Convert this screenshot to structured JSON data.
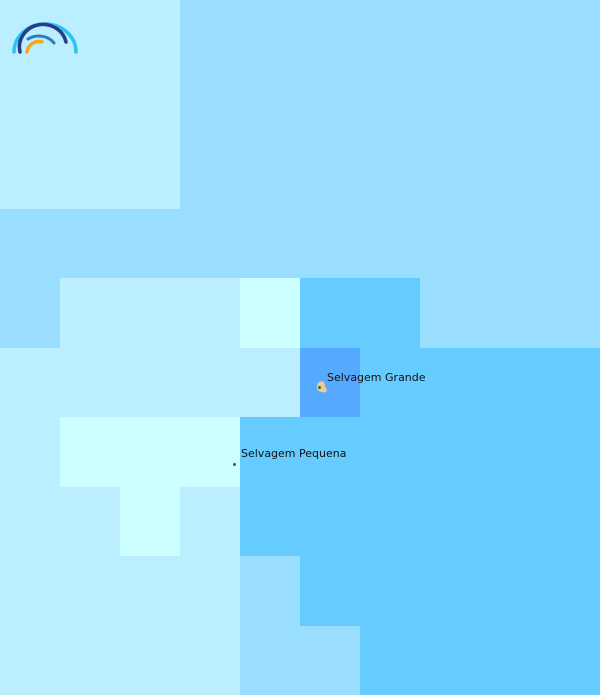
{
  "map": {
    "palette": {
      "A": "#bbeeff",
      "B": "#99ddff",
      "C": "#ccffff",
      "D": "#66ccff",
      "E": "#55aaff"
    },
    "grid": [
      "AAABBBBBBB",
      "AAABBBBBBB",
      "AAABBBBBBB",
      "BBBBBBBBBB",
      "BAAACDDBBB",
      "AAAAAEDDDD",
      "ACCCDDDDDD",
      "AACADDDDDD",
      "AAAABDDDDD",
      "AAAABBDDDD"
    ],
    "places": [
      {
        "name": "Selvagem Grande"
      },
      {
        "name": "Selvagem Pequena"
      }
    ],
    "island_color": "#f2c99a",
    "marker_color": "#1a7a1a"
  },
  "logo": {
    "icon": "rainbow-arcs-logo"
  }
}
